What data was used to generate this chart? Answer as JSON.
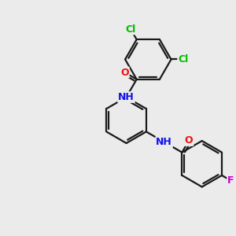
{
  "bg_color": "#ebebeb",
  "bond_color": "#1a1a1a",
  "bond_width": 1.6,
  "atom_colors": {
    "N": "#1010ee",
    "O": "#ee1010",
    "Cl": "#00bb00",
    "F": "#cc00cc",
    "H": "#1010ee"
  },
  "font_size": 9.0
}
